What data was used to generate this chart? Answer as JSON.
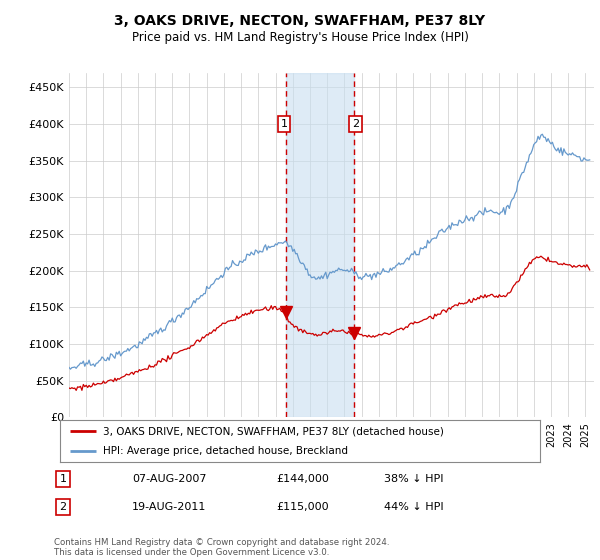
{
  "title": "3, OAKS DRIVE, NECTON, SWAFFHAM, PE37 8LY",
  "subtitle": "Price paid vs. HM Land Registry's House Price Index (HPI)",
  "legend_label_red": "3, OAKS DRIVE, NECTON, SWAFFHAM, PE37 8LY (detached house)",
  "legend_label_blue": "HPI: Average price, detached house, Breckland",
  "transaction1_date": "07-AUG-2007",
  "transaction1_price": "£144,000",
  "transaction1_pct": "38% ↓ HPI",
  "transaction2_date": "19-AUG-2011",
  "transaction2_price": "£115,000",
  "transaction2_pct": "44% ↓ HPI",
  "footer": "Contains HM Land Registry data © Crown copyright and database right 2024.\nThis data is licensed under the Open Government Licence v3.0.",
  "vline1_year": 2007.58,
  "vline2_year": 2011.58,
  "shade_color": "#c8dff0",
  "vline_color": "#cc0000",
  "red_line_color": "#cc0000",
  "blue_line_color": "#6699cc",
  "marker1_price": 144000,
  "marker1_year": 2007.58,
  "marker2_price": 115000,
  "marker2_year": 2011.58,
  "ylim_max": 470000,
  "ylim_min": 0,
  "background_color": "#ffffff",
  "grid_color": "#cccccc",
  "label1_price": 400000,
  "label2_price": 400000
}
